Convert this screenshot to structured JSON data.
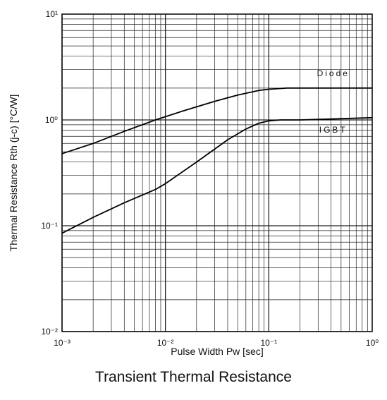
{
  "chart_data": {
    "type": "line",
    "title": "Transient Thermal Resistance",
    "xlabel": "Pulse Width Pw [sec]",
    "ylabel": "Thermal Resistance Rth (j-c) [°C/W]",
    "x_scale": "log",
    "y_scale": "log",
    "xlim": [
      0.001,
      1
    ],
    "ylim": [
      0.01,
      10
    ],
    "x_tick_labels": [
      "10⁻³",
      "10⁻²",
      "10⁻¹",
      "10⁰"
    ],
    "y_tick_labels": [
      "10⁻²",
      "10⁻¹",
      "10⁰",
      "10¹"
    ],
    "grid": true,
    "series": [
      {
        "name": "Diode",
        "x": [
          0.001,
          0.002,
          0.004,
          0.008,
          0.015,
          0.03,
          0.05,
          0.08,
          0.1,
          0.15,
          0.2,
          0.4,
          1
        ],
        "y": [
          0.48,
          0.6,
          0.78,
          1.0,
          1.22,
          1.5,
          1.72,
          1.9,
          1.95,
          2.0,
          2.0,
          2.0,
          2.0
        ]
      },
      {
        "name": "IGBT",
        "x": [
          0.001,
          0.002,
          0.004,
          0.008,
          0.01,
          0.02,
          0.04,
          0.06,
          0.08,
          0.1,
          0.13,
          0.2,
          0.4,
          1
        ],
        "y": [
          0.085,
          0.12,
          0.165,
          0.22,
          0.25,
          0.4,
          0.65,
          0.82,
          0.93,
          0.98,
          1.0,
          1.0,
          1.02,
          1.05
        ]
      }
    ]
  }
}
